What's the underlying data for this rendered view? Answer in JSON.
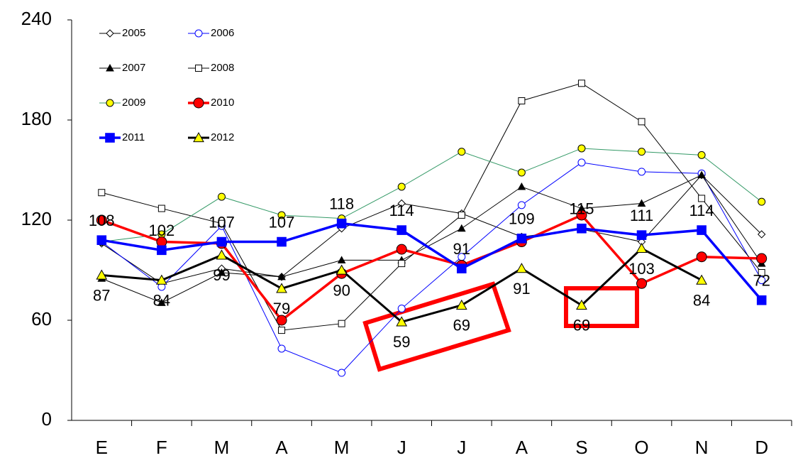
{
  "chart_data": {
    "type": "line",
    "categories": [
      "E",
      "F",
      "M",
      "A",
      "M",
      "J",
      "J",
      "A",
      "S",
      "O",
      "N",
      "D"
    ],
    "ylim": [
      0,
      240
    ],
    "yticks": [
      0,
      60,
      120,
      180,
      240
    ],
    "series": [
      {
        "name": "2005",
        "color": "#000000",
        "marker": "diamond",
        "marker_fill": "#ffffff",
        "line_width": 1,
        "values": [
          106,
          82,
          91,
          86,
          115,
          130,
          124,
          110,
          114.5,
          107,
          147,
          111.5
        ]
      },
      {
        "name": "2006",
        "color": "#0000ff",
        "marker": "circle",
        "marker_fill": "#ffffff",
        "line_width": 1,
        "values": [
          107,
          80,
          116.5,
          43,
          28.5,
          67,
          98,
          129,
          154.5,
          149,
          148,
          84
        ]
      },
      {
        "name": "2007",
        "color": "#000000",
        "marker": "triangle",
        "marker_fill": "#000000",
        "line_width": 1,
        "values": [
          85,
          70.5,
          88.5,
          86,
          96,
          96,
          115,
          140,
          127,
          130,
          147,
          94
        ]
      },
      {
        "name": "2008",
        "color": "#000000",
        "marker": "square",
        "marker_fill": "#ffffff",
        "line_width": 1,
        "values": [
          136.5,
          127,
          118,
          54,
          58,
          94,
          123,
          191.5,
          202,
          179,
          133,
          88.5
        ]
      },
      {
        "name": "2009",
        "color": "#339966",
        "marker": "circle",
        "marker_fill": "#ffff00",
        "line_width": 1,
        "values": [
          107,
          111.5,
          134,
          123,
          121,
          140,
          161,
          148.5,
          163,
          161,
          159,
          131
        ]
      },
      {
        "name": "2010",
        "color": "#ff0000",
        "marker": "circle",
        "marker_fill": "#ff0000",
        "line_width": 3.5,
        "values": [
          120,
          107,
          106,
          60,
          88,
          102.5,
          93,
          107,
          123,
          82,
          98,
          97
        ]
      },
      {
        "name": "2011",
        "color": "#0000ff",
        "marker": "square",
        "marker_fill": "#0000ff",
        "line_width": 3.5,
        "data_labels": "above",
        "values": [
          108,
          102,
          107,
          107,
          118,
          114,
          91,
          109,
          115,
          111,
          114,
          72
        ]
      },
      {
        "name": "2012",
        "color": "#000000",
        "marker": "triangle",
        "marker_fill": "#ffff00",
        "line_width": 3,
        "data_labels": "below",
        "values": [
          87,
          84,
          99,
          79,
          90,
          59,
          69,
          91,
          69,
          103,
          84,
          null
        ]
      }
    ]
  }
}
